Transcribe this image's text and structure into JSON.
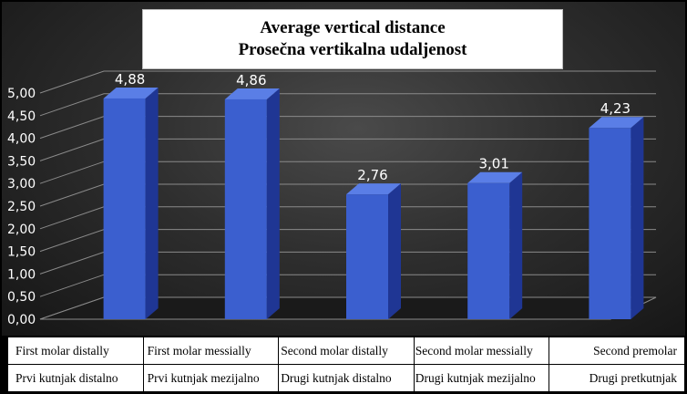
{
  "chart_data": {
    "type": "bar",
    "title": "Average vertical distance",
    "subtitle": "Prosečna vertikalna udaljenost",
    "categories": [
      [
        "First molar distally",
        "Prvi kutnjak distalno"
      ],
      [
        "First molar messially",
        "Prvi kutnjak mezijalno"
      ],
      [
        "Second molar distally",
        "Drugi kutnjak distalno"
      ],
      [
        "Second molar messially",
        "Drugi kutnjak mezijalno"
      ],
      [
        "Second premolar",
        "Drugi pretkutnjak"
      ]
    ],
    "values": [
      4.88,
      4.86,
      2.76,
      3.01,
      4.23
    ],
    "value_labels": [
      "4,88",
      "4,86",
      "2,76",
      "3,01",
      "4,23"
    ],
    "y_ticks": [
      "0,00",
      "0,50",
      "1,00",
      "1,50",
      "2,00",
      "2,50",
      "3,00",
      "3,50",
      "4,00",
      "4,50",
      "5,00"
    ],
    "ylim": [
      0,
      5
    ],
    "grid": true,
    "bar_style": "3d-column",
    "colors": {
      "bar_front": "#3b5fcf",
      "bar_side": "#1f3694",
      "bar_top": "#5a7ee6",
      "grid": "#8a8a8a",
      "text": "#ffffff"
    }
  }
}
